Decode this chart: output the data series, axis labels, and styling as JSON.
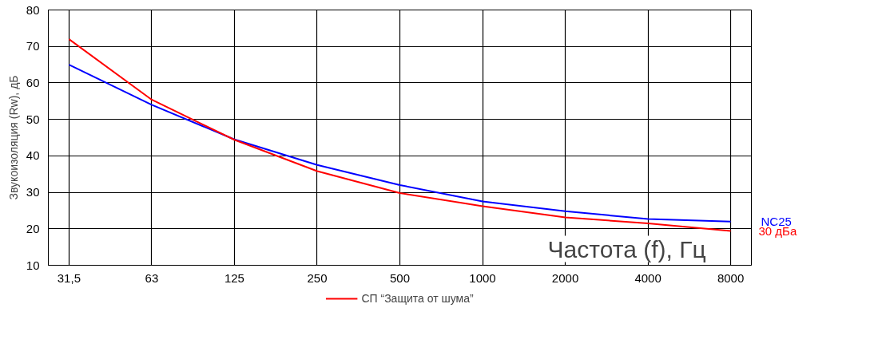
{
  "chart_data": {
    "type": "line",
    "xlabel": "Частота (f), Гц",
    "ylabel": "Звукоизоляция (Rw), дБ",
    "categories": [
      "31,5",
      "63",
      "125",
      "250",
      "500",
      "1000",
      "2000",
      "4000",
      "8000"
    ],
    "series": [
      {
        "color": "#0000ff",
        "values": [
          65,
          54,
          44.5,
          37.5,
          32,
          27.5,
          24.8,
          22.7,
          22
        ]
      },
      {
        "name": "СП “Защита от шума”",
        "color": "#ff0000",
        "values": [
          72,
          55.4,
          44.4,
          35.8,
          29.8,
          26.2,
          23.1,
          21.5,
          19.4
        ]
      }
    ],
    "ylim": [
      10,
      80
    ],
    "yticks": [
      10,
      20,
      30,
      40,
      50,
      60,
      70,
      80
    ],
    "grid": true,
    "legend": "bottom",
    "line_style": "solid",
    "marker": "none",
    "annotations": [
      {
        "text": "NC25",
        "x": "8000",
        "y": 22
      },
      {
        "text": "30 дБа",
        "x": "8000",
        "y": 19.4
      }
    ]
  }
}
